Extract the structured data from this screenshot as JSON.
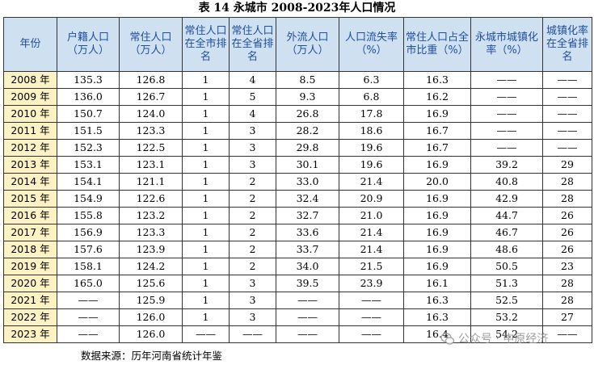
{
  "title": "表 14 永城市 2008-2023年人口情况",
  "headers": [
    "年份",
    "户籍人口（万人）",
    "常住人口（万人）",
    "常住人口在全市排名",
    "常住人口在全省排名",
    "外流人口（万人）",
    "人口流失率（%）",
    "常住人口占全市比重（%）",
    "永城市城镇化率（%）",
    "城镇化率在全省排名"
  ],
  "rows": [
    [
      "2008 年",
      "135.3",
      "126.8",
      "1",
      "4",
      "8.5",
      "6.3",
      "16.3",
      "——",
      "——"
    ],
    [
      "2009 年",
      "136.0",
      "126.7",
      "1",
      "5",
      "9.3",
      "6.8",
      "16.2",
      "——",
      "——"
    ],
    [
      "2010 年",
      "150.7",
      "124.0",
      "1",
      "4",
      "26.8",
      "17.8",
      "16.9",
      "——",
      "——"
    ],
    [
      "2011 年",
      "151.5",
      "123.3",
      "1",
      "3",
      "28.2",
      "18.6",
      "16.7",
      "——",
      "——"
    ],
    [
      "2012 年",
      "152.3",
      "122.5",
      "1",
      "3",
      "29.8",
      "19.6",
      "16.7",
      "——",
      "——"
    ],
    [
      "2013 年",
      "153.1",
      "123.1",
      "1",
      "3",
      "30.1",
      "19.6",
      "16.9",
      "39.2",
      "29"
    ],
    [
      "2014 年",
      "154.1",
      "121.1",
      "1",
      "2",
      "33.0",
      "21.4",
      "20.0",
      "40.8",
      "28"
    ],
    [
      "2015 年",
      "154.9",
      "122.6",
      "1",
      "2",
      "32.4",
      "20.9",
      "16.9",
      "42.9",
      "28"
    ],
    [
      "2016 年",
      "155.8",
      "123.2",
      "1",
      "2",
      "32.7",
      "21.0",
      "16.9",
      "44.7",
      "26"
    ],
    [
      "2017 年",
      "156.9",
      "123.3",
      "1",
      "2",
      "33.6",
      "21.4",
      "16.9",
      "46.7",
      "26"
    ],
    [
      "2018 年",
      "157.6",
      "123.9",
      "1",
      "2",
      "33.7",
      "21.4",
      "16.9",
      "48.6",
      "26"
    ],
    [
      "2019 年",
      "158.1",
      "124.2",
      "1",
      "2",
      "34.0",
      "21.5",
      "16.9",
      "50.5",
      "23"
    ],
    [
      "2020 年",
      "165.0",
      "125.6",
      "1",
      "3",
      "39.5",
      "23.9",
      "16.1",
      "51.3",
      "28"
    ],
    [
      "2021 年",
      "——",
      "125.9",
      "1",
      "3",
      "——",
      "——",
      "16.3",
      "52.5",
      "28"
    ],
    [
      "2022 年",
      "——",
      "126.0",
      "1",
      "3",
      "——",
      "——",
      "16.3",
      "53.2",
      "27"
    ],
    [
      "2023 年",
      "——",
      "126.0",
      "——",
      "——",
      "——",
      "——",
      "16.4",
      "54.2",
      "——"
    ]
  ],
  "source": "数据来源：历年河南省统计年鉴",
  "watermark": "公众号 · 中原经济",
  "icons": {
    "watermark": "wechat-icon"
  },
  "colors": {
    "header_bg": "#cfe0f1",
    "header_text": "#1f4e9e",
    "year_bg": "#fdf2c4",
    "border": "#333333"
  }
}
